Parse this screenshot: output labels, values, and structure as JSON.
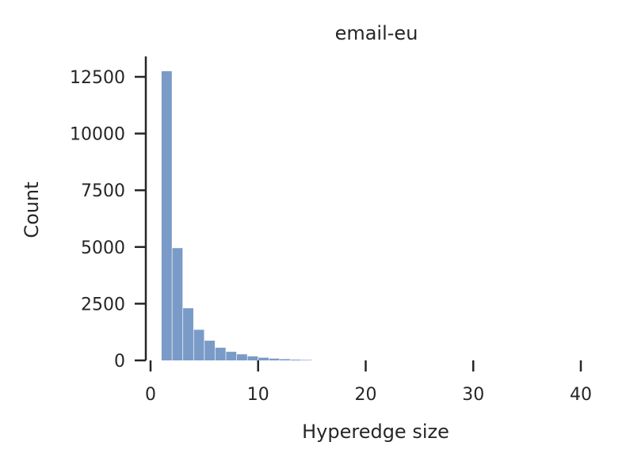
{
  "chart_data": {
    "type": "bar",
    "title": "email-eu",
    "xlabel": "Hyperedge size",
    "ylabel": "Count",
    "xlim": [
      -1,
      42
    ],
    "ylim": [
      0,
      13400
    ],
    "xticks": [
      0,
      10,
      20,
      30,
      40
    ],
    "yticks": [
      0,
      2500,
      5000,
      7500,
      10000,
      12500
    ],
    "grid": false,
    "bar_color": "#7a9bc8",
    "bin_width": 0.95,
    "bins": [
      {
        "x": 1.5,
        "count": 12750
      },
      {
        "x": 2.5,
        "count": 4950
      },
      {
        "x": 3.5,
        "count": 2300
      },
      {
        "x": 4.5,
        "count": 1350
      },
      {
        "x": 5.5,
        "count": 870
      },
      {
        "x": 6.5,
        "count": 560
      },
      {
        "x": 7.5,
        "count": 380
      },
      {
        "x": 8.5,
        "count": 270
      },
      {
        "x": 9.5,
        "count": 180
      },
      {
        "x": 10.5,
        "count": 120
      },
      {
        "x": 11.5,
        "count": 80
      },
      {
        "x": 12.5,
        "count": 55
      },
      {
        "x": 13.5,
        "count": 35
      },
      {
        "x": 14.5,
        "count": 22
      }
    ]
  }
}
